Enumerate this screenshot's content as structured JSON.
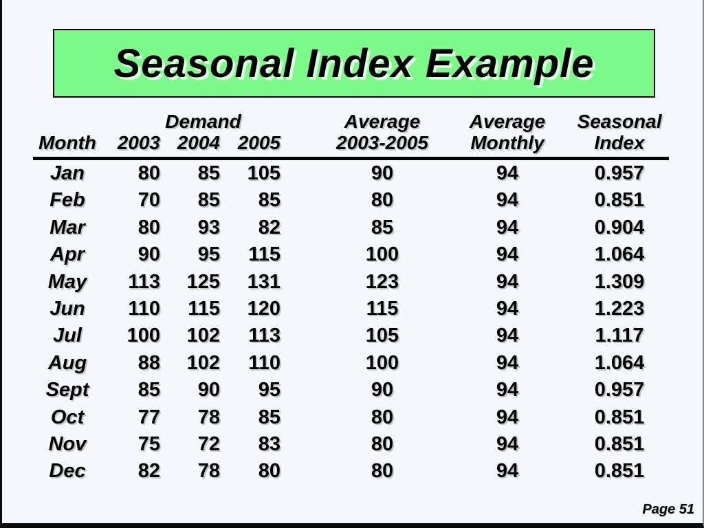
{
  "title": "Seasonal Index Example",
  "colors": {
    "title_bg": "#7df98b",
    "slide_bg": "#f4f8fd",
    "text_color": "#000000",
    "border_dark": "#0a0a0a",
    "border_gray": "#8a8a8a"
  },
  "page": {
    "footer": "Page 51"
  },
  "table": {
    "header": {
      "month": "Month",
      "demand_group": "Demand",
      "years": [
        "2003",
        "2004",
        "2005"
      ],
      "avg_line1": "Average",
      "avg_line2": "2003-2005",
      "avg_monthly_line1": "Average",
      "avg_monthly_line2": "Monthly",
      "seasonal_line1": "Seasonal",
      "seasonal_line2": "Index"
    },
    "rows": [
      {
        "month": "Jan",
        "y2003": "80",
        "y2004": "85",
        "y2005": "105",
        "avg": "90",
        "avg_monthly": "94",
        "seasonal_index": "0.957"
      },
      {
        "month": "Feb",
        "y2003": "70",
        "y2004": "85",
        "y2005": "85",
        "avg": "80",
        "avg_monthly": "94",
        "seasonal_index": "0.851"
      },
      {
        "month": "Mar",
        "y2003": "80",
        "y2004": "93",
        "y2005": "82",
        "avg": "85",
        "avg_monthly": "94",
        "seasonal_index": "0.904"
      },
      {
        "month": "Apr",
        "y2003": "90",
        "y2004": "95",
        "y2005": "115",
        "avg": "100",
        "avg_monthly": "94",
        "seasonal_index": "1.064"
      },
      {
        "month": "May",
        "y2003": "113",
        "y2004": "125",
        "y2005": "131",
        "avg": "123",
        "avg_monthly": "94",
        "seasonal_index": "1.309"
      },
      {
        "month": "Jun",
        "y2003": "110",
        "y2004": "115",
        "y2005": "120",
        "avg": "115",
        "avg_monthly": "94",
        "seasonal_index": "1.223"
      },
      {
        "month": "Jul",
        "y2003": "100",
        "y2004": "102",
        "y2005": "113",
        "avg": "105",
        "avg_monthly": "94",
        "seasonal_index": "1.117"
      },
      {
        "month": "Aug",
        "y2003": "88",
        "y2004": "102",
        "y2005": "110",
        "avg": "100",
        "avg_monthly": "94",
        "seasonal_index": "1.064"
      },
      {
        "month": "Sept",
        "y2003": "85",
        "y2004": "90",
        "y2005": "95",
        "avg": "90",
        "avg_monthly": "94",
        "seasonal_index": "0.957"
      },
      {
        "month": "Oct",
        "y2003": "77",
        "y2004": "78",
        "y2005": "85",
        "avg": "80",
        "avg_monthly": "94",
        "seasonal_index": "0.851"
      },
      {
        "month": "Nov",
        "y2003": "75",
        "y2004": "72",
        "y2005": "83",
        "avg": "80",
        "avg_monthly": "94",
        "seasonal_index": "0.851"
      },
      {
        "month": "Dec",
        "y2003": "82",
        "y2004": "78",
        "y2005": "80",
        "avg": "80",
        "avg_monthly": "94",
        "seasonal_index": "0.851"
      }
    ]
  },
  "chart_data": {
    "type": "table",
    "title": "Seasonal Index Example",
    "columns": [
      "Month",
      "Demand 2003",
      "Demand 2004",
      "Demand 2005",
      "Average 2003-2005",
      "Average Monthly",
      "Seasonal Index"
    ],
    "rows": [
      [
        "Jan",
        80,
        85,
        105,
        90,
        94,
        0.957
      ],
      [
        "Feb",
        70,
        85,
        85,
        80,
        94,
        0.851
      ],
      [
        "Mar",
        80,
        93,
        82,
        85,
        94,
        0.904
      ],
      [
        "Apr",
        90,
        95,
        115,
        100,
        94,
        1.064
      ],
      [
        "May",
        113,
        125,
        131,
        123,
        94,
        1.309
      ],
      [
        "Jun",
        110,
        115,
        120,
        115,
        94,
        1.223
      ],
      [
        "Jul",
        100,
        102,
        113,
        105,
        94,
        1.117
      ],
      [
        "Aug",
        88,
        102,
        110,
        100,
        94,
        1.064
      ],
      [
        "Sept",
        85,
        90,
        95,
        90,
        94,
        0.957
      ],
      [
        "Oct",
        77,
        78,
        85,
        80,
        94,
        0.851
      ],
      [
        "Nov",
        75,
        72,
        83,
        80,
        94,
        0.851
      ],
      [
        "Dec",
        82,
        78,
        80,
        80,
        94,
        0.851
      ]
    ]
  }
}
